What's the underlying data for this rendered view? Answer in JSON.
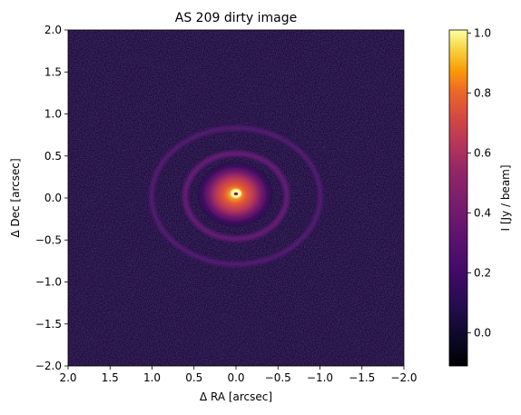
{
  "chart_data": {
    "type": "heatmap",
    "title": "AS 209 dirty image",
    "xlabel": "Δ RA [arcsec]",
    "ylabel": "Δ Dec [arcsec]",
    "xlim": [
      2.0,
      -2.0
    ],
    "ylim": [
      -2.0,
      2.0
    ],
    "x_ticks": [
      2.0,
      1.5,
      1.0,
      0.5,
      0.0,
      -0.5,
      -1.0,
      -1.5,
      -2.0
    ],
    "x_tick_labels": [
      "2.0",
      "1.5",
      "1.0",
      "0.5",
      "0.0",
      "−0.5",
      "−1.0",
      "−1.5",
      "−2.0"
    ],
    "y_ticks": [
      2.0,
      1.5,
      1.0,
      0.5,
      0.0,
      -0.5,
      -1.0,
      -1.5,
      -2.0
    ],
    "y_tick_labels": [
      "2.0",
      "1.5",
      "1.0",
      "0.5",
      "0.0",
      "−0.5",
      "−1.0",
      "−1.5",
      "−2.0"
    ],
    "colorbar": {
      "label": "I [Jy / beam]",
      "colormap": "inferno",
      "range": [
        -0.11,
        1.01
      ],
      "ticks": [
        0.0,
        0.2,
        0.4,
        0.6,
        0.8,
        1.0
      ],
      "tick_labels": [
        "0.0",
        "0.2",
        "0.4",
        "0.6",
        "0.8",
        "1.0"
      ]
    },
    "features": [
      {
        "name": "central disk",
        "center": [
          0.0,
          0.0
        ],
        "radius_arcsec": 0.4,
        "peak": 1.0
      },
      {
        "name": "inner ring",
        "center": [
          0.0,
          0.0
        ],
        "radius_arcsec": 0.55,
        "intensity": 0.18
      },
      {
        "name": "outer ring",
        "center": [
          0.0,
          0.0
        ],
        "radius_arcsec": 0.95,
        "intensity": 0.15
      }
    ],
    "background_noise": 0.0,
    "grid": false
  }
}
